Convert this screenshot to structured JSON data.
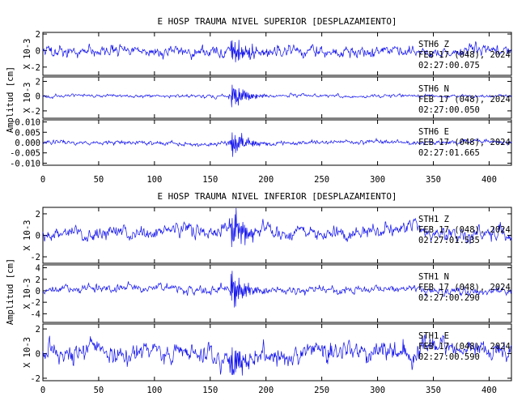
{
  "chart_data": [
    {
      "type": "line",
      "title": "E HOSP TRAUMA NIVEL SUPERIOR [DESPLAZAMIENTO]",
      "ylabel": "Amplitud [cm]",
      "xlim": [
        0,
        420
      ],
      "xticks": [
        0,
        50,
        100,
        150,
        200,
        250,
        300,
        350,
        400
      ],
      "traces": [
        {
          "station": "STH6",
          "component": "Z",
          "date": "FEB 17 (048), 2024",
          "time": "02:27:00.075",
          "scale_label": "X 10-3",
          "ylim": [
            -3,
            2.2
          ],
          "yticks": [
            -2,
            0,
            2
          ],
          "ytick_labels": [
            "-2",
            "0",
            "2"
          ],
          "noise": 0.45,
          "quake_amp": 1.9,
          "drift": 0.25,
          "seed": 11
        },
        {
          "station": "STH6",
          "component": "N",
          "date": "FEB 17 (048), 2024",
          "time": "02:27:00.050",
          "scale_label": "X 10-3",
          "ylim": [
            -3,
            2.6
          ],
          "yticks": [
            -2,
            0,
            2
          ],
          "ytick_labels": [
            "-2",
            "0",
            "2"
          ],
          "noise": 0.15,
          "quake_amp": 2.1,
          "drift": 0.05,
          "seed": 23
        },
        {
          "station": "STH6",
          "component": "E",
          "date": "FEB 17 (048), 2024",
          "time": "02:27:01.665",
          "scale_label": "",
          "ylim": [
            -0.011,
            0.011
          ],
          "yticks": [
            -0.01,
            -0.005,
            0.0,
            0.005,
            0.01
          ],
          "ytick_labels": [
            "-0.010",
            "-0.005",
            "0.000",
            "0.005",
            "0.010"
          ],
          "noise": 0.0007,
          "quake_amp": 0.0085,
          "drift": 0.0005,
          "seed": 37
        }
      ]
    },
    {
      "type": "line",
      "title": "E HOSP TRAUMA NIVEL INFERIOR [DESPLAZAMIENTO]",
      "ylabel": "Amplitud [cm]",
      "xlim": [
        0,
        420
      ],
      "xticks": [
        0,
        50,
        100,
        150,
        200,
        250,
        300,
        350,
        400
      ],
      "traces": [
        {
          "station": "STH1",
          "component": "Z",
          "date": "FEB 17 (048), 2024",
          "time": "02:27:01.535",
          "scale_label": "X 10-3",
          "ylim": [
            -2.6,
            2.6
          ],
          "yticks": [
            -2,
            0,
            2
          ],
          "ytick_labels": [
            "-2",
            "0",
            "2"
          ],
          "noise": 0.45,
          "quake_amp": 2.3,
          "drift": 0.55,
          "seed": 51
        },
        {
          "station": "STH1",
          "component": "N",
          "date": "FEB 17 (048), 2024",
          "time": "02:27:00.290",
          "scale_label": "X 10-3",
          "ylim": [
            -5.5,
            4.5
          ],
          "yticks": [
            -4,
            -2,
            0,
            2,
            4
          ],
          "ytick_labels": [
            "-4",
            "-2",
            "0",
            "2",
            "4"
          ],
          "noise": 0.45,
          "quake_amp": 3.8,
          "drift": 0.3,
          "seed": 67
        },
        {
          "station": "STH1",
          "component": "E",
          "date": "FEB 17 (048), 2024",
          "time": "02:27:00.590",
          "scale_label": "X 10-3",
          "ylim": [
            -2.2,
            2.4
          ],
          "yticks": [
            -2,
            0,
            2
          ],
          "ytick_labels": [
            "-2",
            "0",
            "2"
          ],
          "noise": 0.55,
          "quake_amp": 2.0,
          "drift": 0.5,
          "seed": 83
        }
      ]
    }
  ],
  "colors": {
    "trace": "#1010ee",
    "axis": "#000000"
  }
}
